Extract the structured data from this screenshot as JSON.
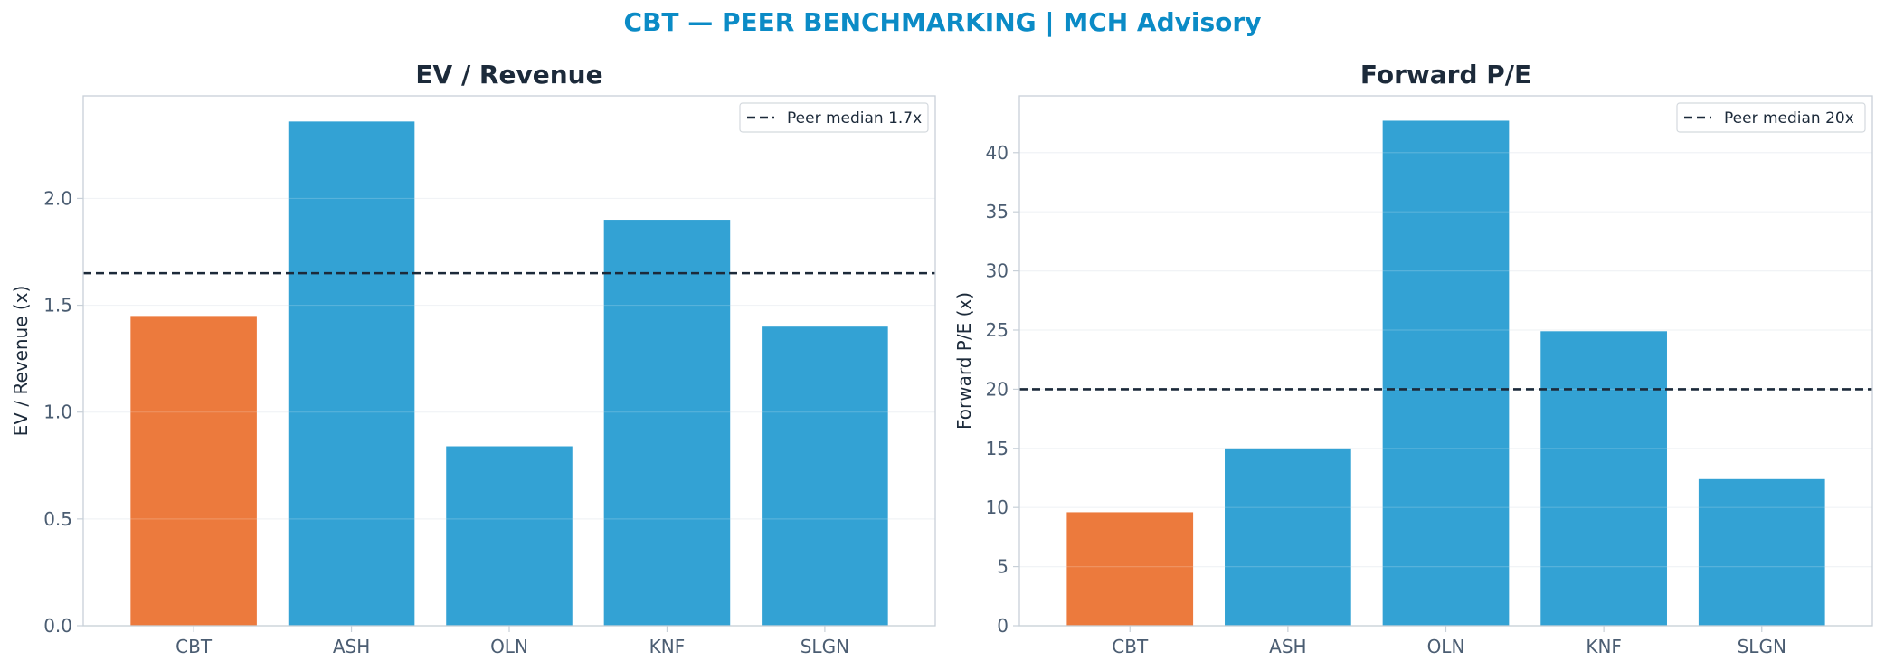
{
  "suptitle": "CBT — PEER BENCHMARKING | MCH Advisory",
  "colors": {
    "highlight": "#ec7a3d",
    "peer": "#33a2d4",
    "median_line": "#1c2a3a",
    "title": "#0b8bc6"
  },
  "chart_data": [
    {
      "type": "bar",
      "title": "EV / Revenue",
      "ylabel": "EV / Revenue (x)",
      "categories": [
        "CBT",
        "ASH",
        "OLN",
        "KNF",
        "SLGN"
      ],
      "values": [
        1.45,
        2.36,
        0.84,
        1.9,
        1.4
      ],
      "highlight_index": 0,
      "ylim": [
        0,
        2.48
      ],
      "yticks": [
        0.0,
        0.5,
        1.0,
        1.5,
        2.0
      ],
      "ytick_labels": [
        "0.0",
        "0.5",
        "1.0",
        "1.5",
        "2.0"
      ],
      "reference_line": {
        "value": 1.65,
        "label": "Peer median 1.7x",
        "style": "dashed"
      },
      "legend_position": "top-right",
      "grid": true
    },
    {
      "type": "bar",
      "title": "Forward P/E",
      "ylabel": "Forward P/E (x)",
      "categories": [
        "CBT",
        "ASH",
        "OLN",
        "KNF",
        "SLGN"
      ],
      "values": [
        9.6,
        15.0,
        42.7,
        24.9,
        12.4
      ],
      "highlight_index": 0,
      "ylim": [
        0,
        44.8
      ],
      "yticks": [
        0,
        5,
        10,
        15,
        20,
        25,
        30,
        35,
        40
      ],
      "ytick_labels": [
        "0",
        "5",
        "10",
        "15",
        "20",
        "25",
        "30",
        "35",
        "40"
      ],
      "reference_line": {
        "value": 20,
        "label": "Peer median 20x",
        "style": "dashed"
      },
      "legend_position": "top-right",
      "grid": true
    }
  ]
}
